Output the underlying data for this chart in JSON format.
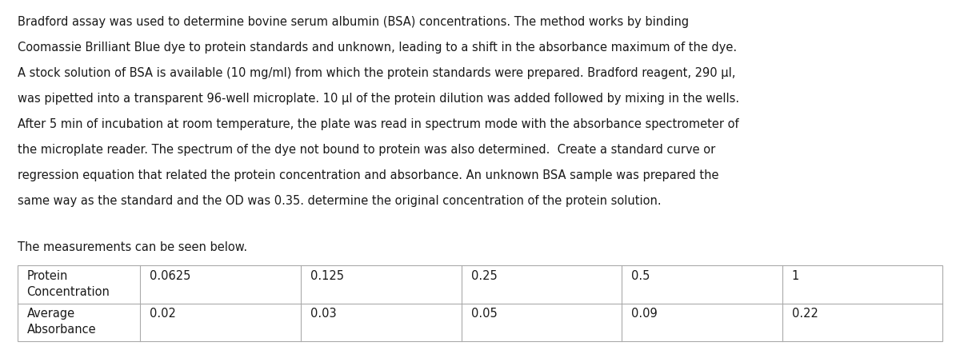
{
  "lines": [
    "Bradford assay was used to determine bovine serum albumin (BSA) concentrations. The method works by binding",
    "Coomassie Brilliant Blue dye to protein standards and unknown, leading to a shift in the absorbance maximum of the dye.",
    "A stock solution of BSA is available (10 mg/ml) from which the protein standards were prepared. Bradford reagent, 290 μl,",
    "was pipetted into a transparent 96-well microplate. 10 μl of the protein dilution was added followed by mixing in the wells.",
    "After 5 min of incubation at room temperature, the plate was read in spectrum mode with the absorbance spectrometer of",
    "the microplate reader. The spectrum of the dye not bound to protein was also determined.  Create a standard curve or",
    "regression equation that related the protein concentration and absorbance. An unknown BSA sample was prepared the",
    "same way as the standard and the OD was 0.35. determine the original concentration of the protein solution."
  ],
  "sub_heading": "The measurements can be seen below.",
  "table_headers": [
    "Protein\nConcentration",
    "0.0625",
    "0.125",
    "0.25",
    "0.5",
    "1"
  ],
  "table_row": [
    "Average\nAbsorbance",
    "0.02",
    "0.03",
    "0.05",
    "0.09",
    "0.22"
  ],
  "bg_color": "#ffffff",
  "text_color": "#1a1a1a",
  "font_size_para": 10.5,
  "font_size_table": 10.5,
  "font_size_sub": 10.5,
  "table_line_color": "#aaaaaa",
  "fig_width": 12.0,
  "fig_height": 4.38,
  "dpi": 100
}
